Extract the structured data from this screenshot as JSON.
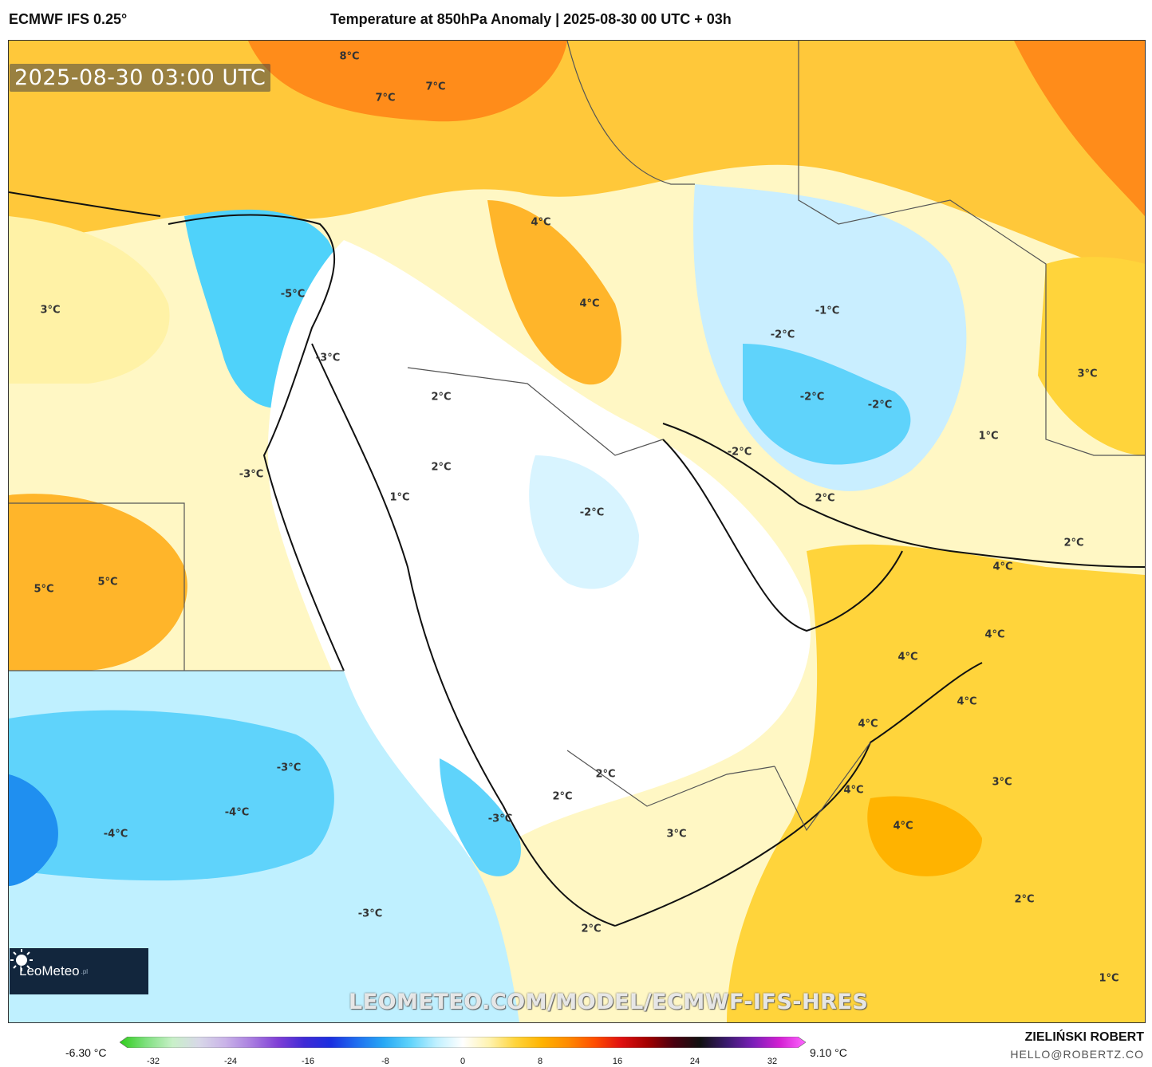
{
  "header": {
    "model": "ECMWF IFS 0.25°",
    "title": "Temperature at 850hPa Anomaly | 2025-08-30 00 UTC + 03h"
  },
  "map": {
    "valid_time": "2025-08-30 03:00 UTC",
    "watermark": "LEOMETEO.COM/MODEL/ECMWF-IFS-HRES",
    "labels": [
      "8°C",
      "7°C",
      "7°C",
      "4°C",
      "4°C",
      "3°C",
      "-5°C",
      "-3°C",
      "2°C",
      "2°C",
      "1°C",
      "-3°C",
      "-2°C",
      "-1°C",
      "-2°C",
      "-2°C",
      "-2°C",
      "1°C",
      "3°C",
      "-2°C",
      "2°C",
      "2°C",
      "4°C",
      "5°C",
      "5°C",
      "4°C",
      "4°C",
      "4°C",
      "4°C",
      "-3°C",
      "-4°C",
      "-4°C",
      "2°C",
      "2°C",
      "-3°C",
      "3°C",
      "4°C",
      "3°C",
      "4°C",
      "-3°C",
      "2°C",
      "2°C",
      "1°C"
    ]
  },
  "logo": {
    "brand": "LeoMeteo",
    "suffix": ".pl"
  },
  "colorbar": {
    "min_label": "-6.30 °C",
    "max_label": "9.10 °C",
    "ticks": [
      "-32",
      "-24",
      "-16",
      "-8",
      "0",
      "8",
      "16",
      "24",
      "32"
    ],
    "colors": [
      "#2ecc1a",
      "#7fe07f",
      "#c8f0c8",
      "#d8d8e8",
      "#c9b3e8",
      "#a97de0",
      "#7f3fd6",
      "#3f2ad6",
      "#1b2fe0",
      "#1f6ff0",
      "#27a8f5",
      "#5fd3fb",
      "#bff0ff",
      "#ffffff",
      "#fff3b0",
      "#ffd43b",
      "#ffb300",
      "#ff8a00",
      "#ff4d00",
      "#e01010",
      "#a30000",
      "#4a0010",
      "#111111",
      "#3a1a6e",
      "#7a1fb8",
      "#d21fd2",
      "#ff66ff"
    ]
  },
  "credits": {
    "author": "ZIELIŃSKI ROBERT",
    "email": "HELLO@ROBERTZ.CO"
  }
}
